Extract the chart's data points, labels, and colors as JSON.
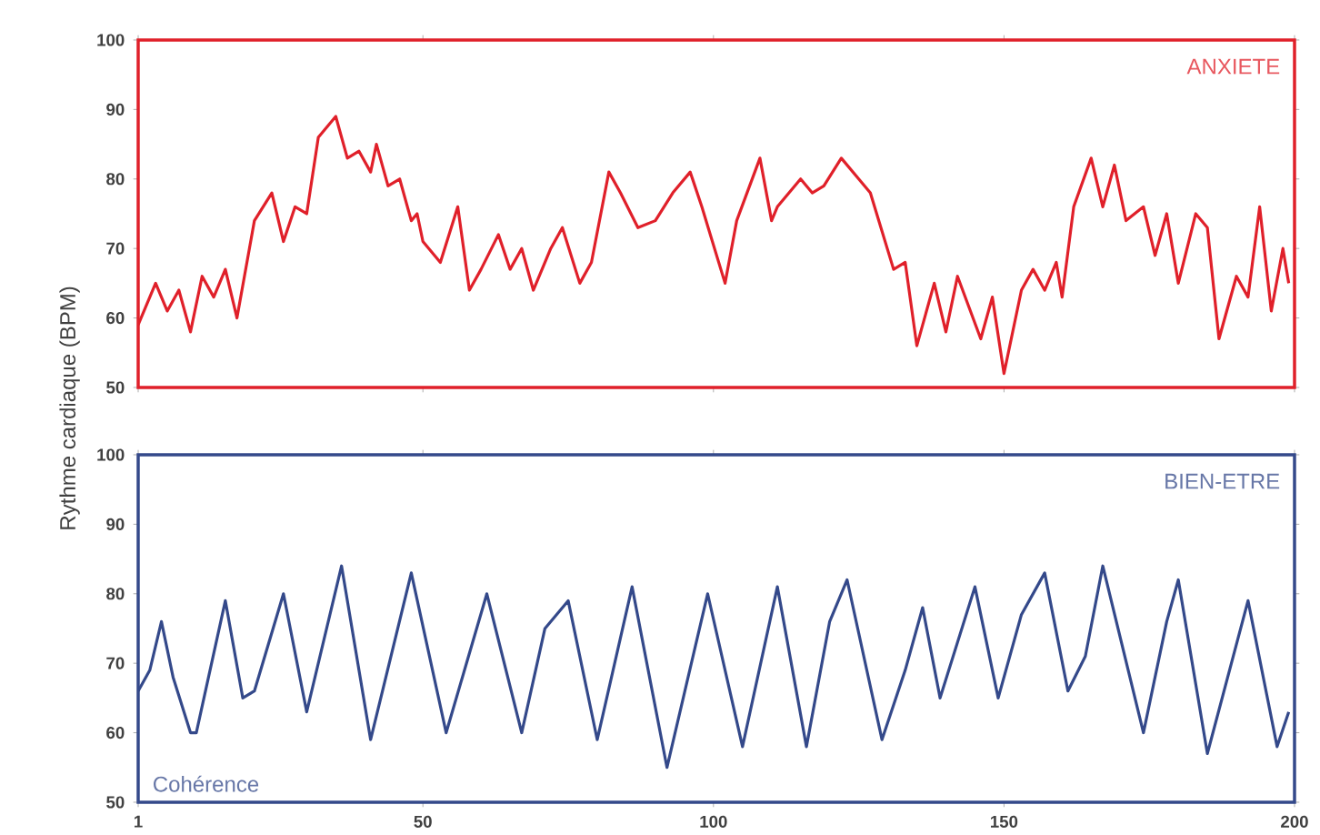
{
  "chart_data": [
    {
      "type": "line",
      "ylabel": "Rythme cardiaque (BPM)",
      "annotations": [
        "ANXIETE"
      ],
      "xlim": [
        1,
        200
      ],
      "xticks": [
        1,
        50,
        100,
        150,
        200
      ],
      "ylim": [
        50,
        100
      ],
      "yticks": [
        50,
        60,
        70,
        80,
        90,
        100
      ],
      "tick_labels": "y",
      "series": [
        {
          "color": "#e0202a",
          "x": [
            1,
            4,
            6,
            8,
            10,
            12,
            14,
            16,
            18,
            21,
            24,
            26,
            28,
            30,
            32,
            35,
            37,
            39,
            41,
            42,
            44,
            46,
            48,
            49,
            50,
            53,
            56,
            58,
            60,
            63,
            65,
            67,
            69,
            72,
            74,
            77,
            79,
            82,
            84,
            87,
            90,
            93,
            96,
            98,
            102,
            104,
            108,
            110,
            111,
            115,
            117,
            119,
            122,
            125,
            127,
            131,
            133,
            135,
            138,
            140,
            142,
            146,
            148,
            150,
            153,
            155,
            157,
            159,
            160,
            162,
            165,
            167,
            169,
            171,
            174,
            176,
            178,
            180,
            183,
            185,
            187,
            190,
            192,
            194,
            196,
            198,
            199
          ],
          "values": [
            59,
            65,
            61,
            64,
            58,
            66,
            63,
            67,
            60,
            74,
            78,
            71,
            76,
            75,
            86,
            89,
            83,
            84,
            81,
            85,
            79,
            80,
            74,
            75,
            71,
            68,
            76,
            64,
            67,
            72,
            67,
            70,
            64,
            70,
            73,
            65,
            68,
            81,
            78,
            73,
            74,
            78,
            81,
            76,
            65,
            74,
            83,
            74,
            76,
            80,
            78,
            79,
            83,
            80,
            78,
            67,
            68,
            56,
            65,
            58,
            66,
            57,
            63,
            52,
            64,
            67,
            64,
            68,
            63,
            76,
            83,
            76,
            82,
            74,
            76,
            69,
            75,
            65,
            75,
            73,
            57,
            66,
            63,
            76,
            61,
            70,
            65
          ]
        }
      ]
    },
    {
      "type": "line",
      "annotations": [
        "BIEN-ETRE",
        "Cohérence"
      ],
      "xlim": [
        1,
        200
      ],
      "xticks": [
        1,
        50,
        100,
        150,
        200
      ],
      "ylim": [
        50,
        100
      ],
      "yticks": [
        50,
        60,
        70,
        80,
        90,
        100
      ],
      "series": [
        {
          "color": "#34498a",
          "x": [
            1,
            3,
            5,
            7,
            10,
            11,
            16,
            19,
            21,
            26,
            30,
            36,
            41,
            48,
            54,
            61,
            67,
            71,
            75,
            80,
            86,
            92,
            99,
            105,
            111,
            116,
            120,
            123,
            129,
            133,
            136,
            139,
            145,
            149,
            153,
            157,
            161,
            164,
            167,
            174,
            178,
            180,
            185,
            192,
            197,
            199
          ],
          "values": [
            66,
            69,
            76,
            68,
            60,
            60,
            79,
            65,
            66,
            80,
            63,
            84,
            59,
            83,
            60,
            80,
            60,
            75,
            79,
            59,
            81,
            55,
            80,
            58,
            81,
            58,
            76,
            82,
            59,
            69,
            78,
            65,
            81,
            65,
            77,
            83,
            66,
            71,
            84,
            60,
            76,
            82,
            57,
            79,
            58,
            63
          ]
        }
      ]
    }
  ]
}
